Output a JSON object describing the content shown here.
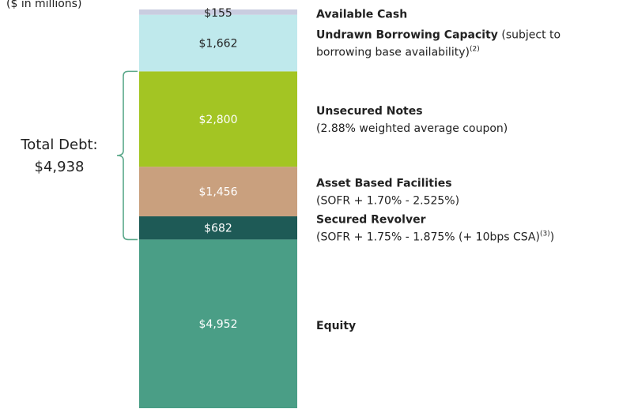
{
  "chart_data": {
    "type": "stacked_bar",
    "subtitle": "($ in millions)",
    "annotation": {
      "lines": [
        "Total Debt:",
        "$4,938"
      ],
      "value": 4938,
      "color": "#5aa88a"
    },
    "series": [
      {
        "name": "Equity",
        "values": [
          4952
        ],
        "value_labels": [
          "$4,952"
        ],
        "color": "#4a9e86",
        "label_color": "#ffffff"
      },
      {
        "name": "Secured Revolver",
        "values": [
          682
        ],
        "value_labels": [
          "$682"
        ],
        "color": "#1e5a56",
        "label_color": "#ffffff",
        "detail": [
          {
            "text": "(SOFR + 1.75% - 1.875% (+ 10bps CSA)"
          },
          {
            "text": "(3)",
            "sup": true
          },
          {
            "text": ")"
          }
        ]
      },
      {
        "name": "Asset Based Facilities",
        "values": [
          1456
        ],
        "value_labels": [
          "$1,456"
        ],
        "color": "#c9a07e",
        "label_color": "#ffffff",
        "detail": [
          {
            "text": "(SOFR + 1.70% - 2.525%)"
          }
        ]
      },
      {
        "name": "Unsecured Notes",
        "values": [
          2800
        ],
        "value_labels": [
          "$2,800"
        ],
        "color": "#a3c523",
        "label_color": "#ffffff",
        "detail": [
          {
            "text": "(2.88% weighted average coupon)"
          }
        ]
      },
      {
        "name": "Undrawn Borrowing Capacity",
        "name_tail": " (subject to",
        "values": [
          1662
        ],
        "value_labels": [
          "$1,662"
        ],
        "color": "#bfe9ec",
        "label_color": "#222222",
        "detail": [
          {
            "text": "borrowing base availability)"
          },
          {
            "text": "(2)",
            "sup": true
          }
        ]
      },
      {
        "name": "Available Cash",
        "values": [
          155
        ],
        "value_labels": [
          "$155"
        ],
        "color": "#c9cde0",
        "label_color": "#222222"
      }
    ]
  }
}
